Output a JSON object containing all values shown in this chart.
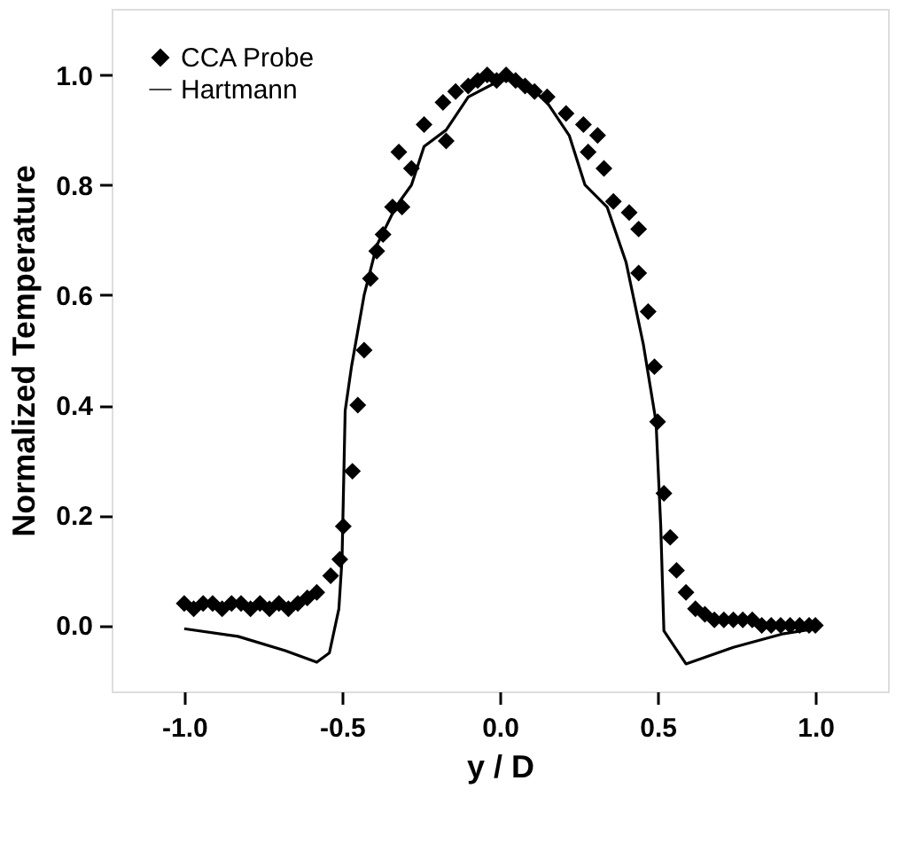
{
  "chart_data": {
    "type": "scatter",
    "xlabel": "y / D",
    "ylabel": "Normalized  Temperature",
    "xlim": [
      -1.23,
      1.23
    ],
    "ylim": [
      -0.12,
      1.12
    ],
    "xticks": [
      {
        "value": -1.0,
        "label": "-1.0"
      },
      {
        "value": -0.5,
        "label": "-0.5"
      },
      {
        "value": 0.0,
        "label": "0.0"
      },
      {
        "value": 0.5,
        "label": "0.5"
      },
      {
        "value": 1.0,
        "label": "1.0"
      }
    ],
    "yticks": [
      {
        "value": 0.0,
        "label": "0.0"
      },
      {
        "value": 0.2,
        "label": "0.2"
      },
      {
        "value": 0.4,
        "label": "0.4"
      },
      {
        "value": 0.6,
        "label": "0.6"
      },
      {
        "value": 0.8,
        "label": "0.8"
      },
      {
        "value": 1.0,
        "label": "1.0"
      }
    ],
    "grid": false,
    "legend": "top left",
    "series": [
      {
        "name": "CCA Probe",
        "type": "scatter",
        "marker": "diamond",
        "color": "#000000",
        "x": [
          -1.0,
          -0.97,
          -0.94,
          -0.91,
          -0.88,
          -0.85,
          -0.82,
          -0.79,
          -0.76,
          -0.73,
          -0.7,
          -0.67,
          -0.64,
          -0.61,
          -0.58,
          -0.536,
          -0.507,
          -0.496,
          -0.467,
          -0.45,
          -0.43,
          -0.41,
          -0.39,
          -0.37,
          -0.34,
          -0.32,
          -0.31,
          -0.28,
          -0.24,
          -0.18,
          -0.17,
          -0.14,
          -0.1,
          -0.07,
          -0.04,
          -0.01,
          0.02,
          0.05,
          0.08,
          0.11,
          0.15,
          0.21,
          0.265,
          0.28,
          0.31,
          0.33,
          0.36,
          0.41,
          0.44,
          0.44,
          0.47,
          0.49,
          0.5,
          0.52,
          0.54,
          0.56,
          0.59,
          0.62,
          0.65,
          0.68,
          0.71,
          0.74,
          0.77,
          0.8,
          0.83,
          0.86,
          0.89,
          0.92,
          0.95,
          0.98,
          1.0
        ],
        "values": [
          0.04,
          0.03,
          0.04,
          0.04,
          0.03,
          0.04,
          0.04,
          0.03,
          0.04,
          0.03,
          0.04,
          0.03,
          0.04,
          0.05,
          0.06,
          0.09,
          0.12,
          0.18,
          0.28,
          0.4,
          0.5,
          0.63,
          0.68,
          0.71,
          0.76,
          0.86,
          0.76,
          0.83,
          0.91,
          0.95,
          0.88,
          0.97,
          0.98,
          0.99,
          1.0,
          0.99,
          1.0,
          0.99,
          0.98,
          0.97,
          0.96,
          0.93,
          0.91,
          0.86,
          0.89,
          0.83,
          0.77,
          0.75,
          0.72,
          0.64,
          0.57,
          0.47,
          0.37,
          0.24,
          0.16,
          0.1,
          0.06,
          0.03,
          0.02,
          0.01,
          0.01,
          0.01,
          0.01,
          0.01,
          0.0,
          0.0,
          0.0,
          0.0,
          0.0,
          0.0,
          0.0
        ]
      },
      {
        "name": "Hartmann",
        "type": "line",
        "marker": "none",
        "line_style": "solid",
        "color": "#000000",
        "x": [
          -1.0,
          -0.83,
          -0.68,
          -0.58,
          -0.54,
          -0.51,
          -0.5,
          -0.49,
          -0.47,
          -0.43,
          -0.39,
          -0.33,
          -0.28,
          -0.24,
          -0.17,
          -0.1,
          0.0,
          0.07,
          0.15,
          0.22,
          0.27,
          0.34,
          0.4,
          0.455,
          0.495,
          0.51,
          0.52,
          0.59,
          0.74,
          0.9,
          1.0
        ],
        "values": [
          -0.006,
          -0.02,
          -0.046,
          -0.067,
          -0.05,
          0.03,
          0.12,
          0.39,
          0.47,
          0.6,
          0.69,
          0.76,
          0.8,
          0.87,
          0.9,
          0.96,
          0.99,
          0.99,
          0.95,
          0.89,
          0.8,
          0.76,
          0.66,
          0.51,
          0.37,
          0.18,
          -0.01,
          -0.07,
          -0.04,
          -0.015,
          -0.006
        ]
      }
    ]
  }
}
